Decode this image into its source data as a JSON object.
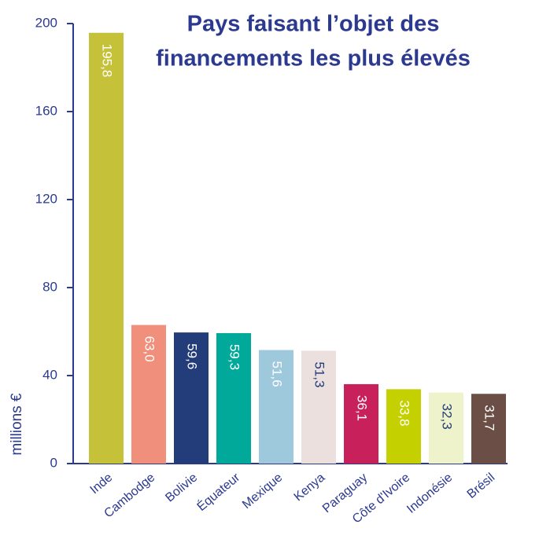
{
  "chart_data": {
    "type": "bar",
    "title": [
      "Pays faisant l’objet des",
      "financements les plus élevés"
    ],
    "ylabel": "millions €",
    "categories": [
      "Inde",
      "Cambodge",
      "Bolivie",
      "Équateur",
      "Mexique",
      "Kenya",
      "Paraguay",
      "Côte d'Ivoire",
      "Indonésie",
      "Brésil"
    ],
    "values": [
      195.8,
      63.0,
      59.6,
      59.3,
      51.6,
      51.3,
      36.1,
      33.8,
      32.3,
      31.7
    ],
    "value_labels": [
      "195,8",
      "63,0",
      "59,6",
      "59,3",
      "51,6",
      "51,3",
      "36,1",
      "33,8",
      "32,3",
      "31,7"
    ],
    "colors": [
      "#c5c23a",
      "#f08f7b",
      "#233d7b",
      "#00a99a",
      "#9ec8dc",
      "#ece0df",
      "#c8205a",
      "#c4d000",
      "#eef3cc",
      "#6b4f46"
    ],
    "value_label_colors": [
      "#ffffff",
      "#ffffff",
      "#ffffff",
      "#ffffff",
      "#ffffff",
      "#233d7b",
      "#ffffff",
      "#ffffff",
      "#233d7b",
      "#ffffff"
    ],
    "ylim": [
      0,
      200
    ],
    "yticks": [
      0,
      40,
      80,
      120,
      160,
      200
    ],
    "grid": false
  }
}
